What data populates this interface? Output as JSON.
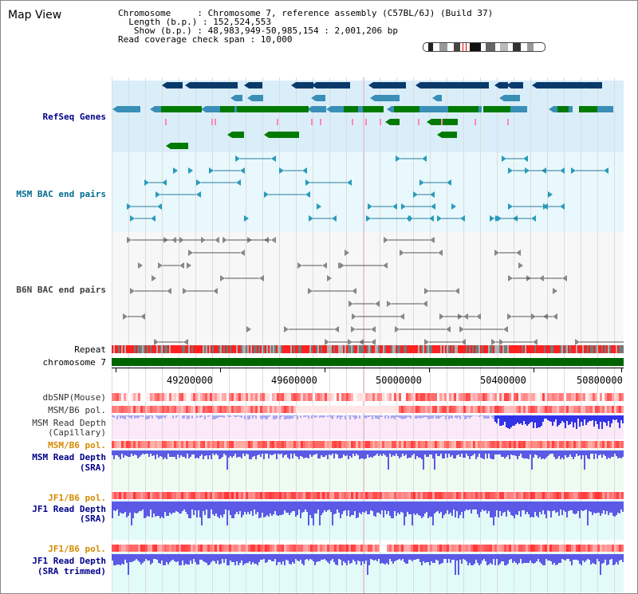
{
  "header": {
    "title": "Map View",
    "info_lines": [
      "Chromosome     : Chromosome 7, reference assembly (C57BL/6J) (Build 37)",
      "  Length (b.p.) : 152,524,553",
      "   Show (b.p.) : 48,983,949-50,985,154 : 2,001,206 bp",
      "Read coverage check span : 10,000"
    ]
  },
  "tracks": {
    "refseq": "RefSeq Genes",
    "msm_bac": "MSM BAC end pairs",
    "b6n_bac": "B6N BAC end pairs",
    "repeat": "Repeat",
    "chromosome": "chromosome 7",
    "dbsnp": "dbSNP(Mouse)",
    "msm_b6_pol_1": "MSM/B6 pol.",
    "msm_depth_cap_1": "MSM Read Depth",
    "msm_depth_cap_2": "(Capillary)",
    "msm_b6_pol_2": "MSM/B6 pol.",
    "msm_depth_sra_1": "MSM Read Depth",
    "msm_depth_sra_2": "(SRA)",
    "jf1_b6_pol_1": "JF1/B6 pol.",
    "jf1_depth_sra_1": "JF1 Read Depth",
    "jf1_depth_sra_2": "(SRA)",
    "jf1_b6_pol_2": "JF1/B6 pol.",
    "jf1_depth_trim_1": "JF1 Read Depth",
    "jf1_depth_trim_2": "(SRA trimmed)"
  },
  "axis": {
    "ticks": [
      "49200000",
      "49600000",
      "50000000",
      "50400000",
      "50800000"
    ]
  },
  "colors": {
    "refseq_bg": "#daeefa",
    "bac_bg": "#e8f8fc",
    "b6n_bg": "#f7f7f7",
    "gene_dark": "#0a3a6a",
    "gene_mid": "#3a8fb7",
    "gene_green": "#007a00",
    "snp_red": "#ff4040",
    "depth_blue": "#5a5ae6",
    "cap_bg": "#fbe8f8",
    "sra_bg": "#eefbf0",
    "jf1_bg": "#e2faf8"
  }
}
